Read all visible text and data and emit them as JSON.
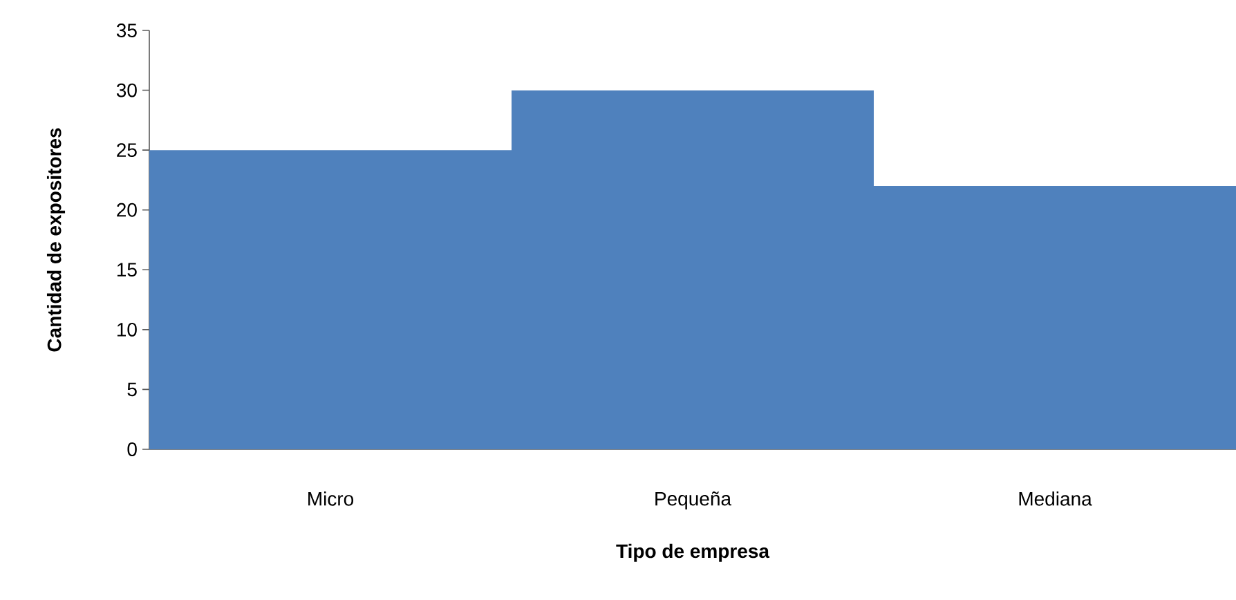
{
  "chart_data": {
    "type": "bar",
    "xlabel": "Tipo de empresa",
    "ylabel": "Cantidad de expositores",
    "categories": [
      "Micro",
      "Pequeña",
      "Mediana"
    ],
    "values": [
      25,
      30,
      22
    ],
    "color": "#4f81bd",
    "ylim": [
      0,
      35
    ],
    "yticks": [
      0,
      5,
      10,
      15,
      20,
      25,
      30,
      35
    ]
  }
}
